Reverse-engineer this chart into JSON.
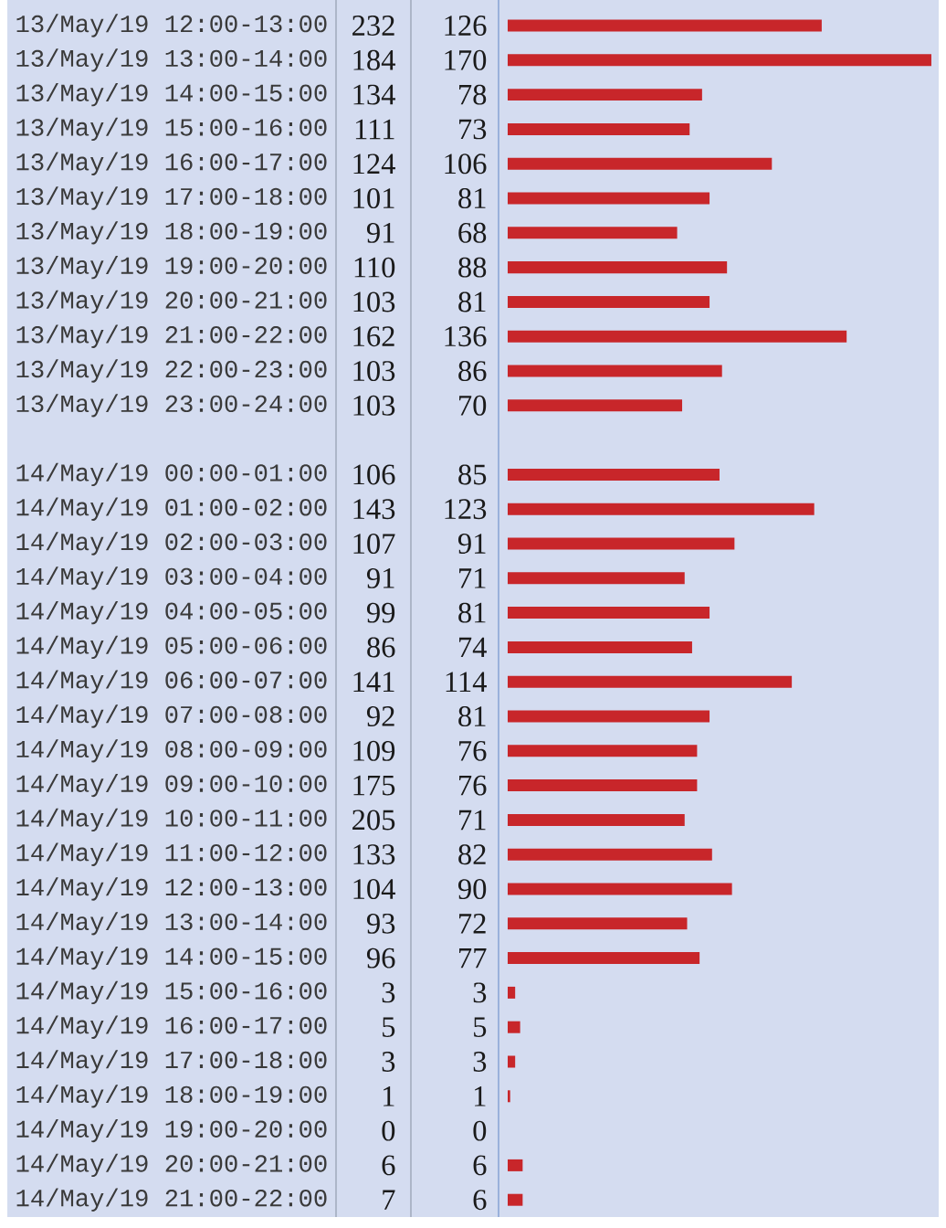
{
  "chart_data": {
    "type": "bar",
    "orientation": "horizontal",
    "categories": [
      "13/May/19 12:00-13:00",
      "13/May/19 13:00-14:00",
      "13/May/19 14:00-15:00",
      "13/May/19 15:00-16:00",
      "13/May/19 16:00-17:00",
      "13/May/19 17:00-18:00",
      "13/May/19 18:00-19:00",
      "13/May/19 19:00-20:00",
      "13/May/19 20:00-21:00",
      "13/May/19 21:00-22:00",
      "13/May/19 22:00-23:00",
      "13/May/19 23:00-24:00",
      null,
      "14/May/19 00:00-01:00",
      "14/May/19 01:00-02:00",
      "14/May/19 02:00-03:00",
      "14/May/19 03:00-04:00",
      "14/May/19 04:00-05:00",
      "14/May/19 05:00-06:00",
      "14/May/19 06:00-07:00",
      "14/May/19 07:00-08:00",
      "14/May/19 08:00-09:00",
      "14/May/19 09:00-10:00",
      "14/May/19 10:00-11:00",
      "14/May/19 11:00-12:00",
      "14/May/19 12:00-13:00",
      "14/May/19 13:00-14:00",
      "14/May/19 14:00-15:00",
      "14/May/19 15:00-16:00",
      "14/May/19 16:00-17:00",
      "14/May/19 17:00-18:00",
      "14/May/19 18:00-19:00",
      "14/May/19 19:00-20:00",
      "14/May/19 20:00-21:00",
      "14/May/19 21:00-22:00"
    ],
    "values": [
      126,
      170,
      78,
      73,
      106,
      81,
      68,
      88,
      81,
      136,
      86,
      70,
      null,
      85,
      123,
      91,
      71,
      81,
      74,
      114,
      81,
      76,
      76,
      71,
      82,
      90,
      72,
      77,
      3,
      5,
      3,
      1,
      0,
      6,
      6
    ],
    "color": "#c8262a",
    "data_labels": true,
    "annotations": [
      "232",
      "184",
      "134",
      "111",
      "124",
      "101",
      "91",
      "110",
      "103",
      "162",
      "103",
      "103",
      "106",
      "143",
      "107",
      "91",
      "99",
      "86",
      "141",
      "92",
      "109",
      "175",
      "205",
      "133",
      "104",
      "93",
      "96",
      "3",
      "5",
      "3",
      "1",
      "0",
      "6",
      "7"
    ]
  }
}
